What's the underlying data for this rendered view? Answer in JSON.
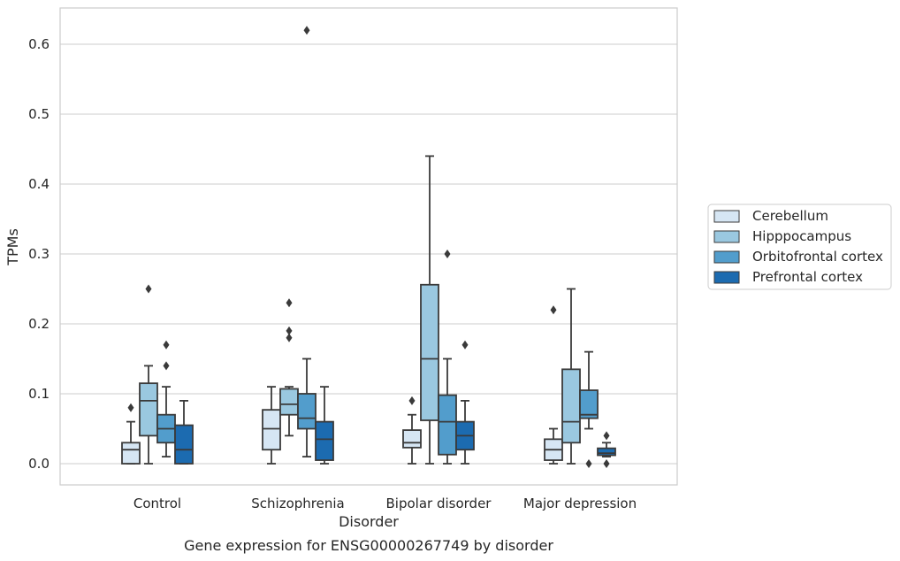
{
  "chart_data": {
    "type": "box",
    "title": "Gene expression for ENSG00000267749 by disorder",
    "xlabel": "Disorder",
    "ylabel": "TPMs",
    "ylim": [
      -0.03,
      0.655
    ],
    "yticks": [
      0.0,
      0.1,
      0.2,
      0.3,
      0.4,
      0.5,
      0.6
    ],
    "ytick_labels": [
      "0.0",
      "0.1",
      "0.2",
      "0.3",
      "0.4",
      "0.5",
      "0.6"
    ],
    "grid": true,
    "legend_position": "right",
    "categories": [
      "Control",
      "Schizophrenia",
      "Bipolar disorder",
      "Major depression"
    ],
    "series": [
      {
        "name": "Cerebellum",
        "color": "#d6e6f4",
        "boxes": [
          {
            "min": 0.0,
            "q1": 0.0,
            "median": 0.02,
            "q3": 0.03,
            "max": 0.06,
            "outliers": [
              0.08
            ]
          },
          {
            "min": 0.0,
            "q1": 0.02,
            "median": 0.05,
            "q3": 0.077,
            "max": 0.11,
            "outliers": []
          },
          {
            "min": 0.0,
            "q1": 0.023,
            "median": 0.03,
            "q3": 0.048,
            "max": 0.07,
            "outliers": [
              0.09
            ]
          },
          {
            "min": 0.0,
            "q1": 0.005,
            "median": 0.02,
            "q3": 0.035,
            "max": 0.05,
            "outliers": [
              0.22
            ]
          }
        ]
      },
      {
        "name": "Hipppocampus",
        "color": "#9ac8e0",
        "boxes": [
          {
            "min": 0.0,
            "q1": 0.04,
            "median": 0.09,
            "q3": 0.115,
            "max": 0.14,
            "outliers": [
              0.25
            ]
          },
          {
            "min": 0.04,
            "q1": 0.07,
            "median": 0.085,
            "q3": 0.107,
            "max": 0.11,
            "outliers": [
              0.18,
              0.19,
              0.23
            ]
          },
          {
            "min": 0.0,
            "q1": 0.062,
            "median": 0.15,
            "q3": 0.256,
            "max": 0.44,
            "outliers": []
          },
          {
            "min": 0.0,
            "q1": 0.03,
            "median": 0.06,
            "q3": 0.135,
            "max": 0.25,
            "outliers": []
          }
        ]
      },
      {
        "name": "Orbitofrontal cortex",
        "color": "#529dcc",
        "boxes": [
          {
            "min": 0.01,
            "q1": 0.03,
            "median": 0.05,
            "q3": 0.07,
            "max": 0.11,
            "outliers": [
              0.14,
              0.17
            ]
          },
          {
            "min": 0.01,
            "q1": 0.05,
            "median": 0.065,
            "q3": 0.1,
            "max": 0.15,
            "outliers": [
              0.62
            ]
          },
          {
            "min": 0.0,
            "q1": 0.013,
            "median": 0.06,
            "q3": 0.098,
            "max": 0.15,
            "outliers": [
              0.3
            ]
          },
          {
            "min": 0.05,
            "q1": 0.065,
            "median": 0.07,
            "q3": 0.105,
            "max": 0.16,
            "outliers": [
              0.0
            ]
          }
        ]
      },
      {
        "name": "Prefrontal cortex",
        "color": "#1c6bb0",
        "boxes": [
          {
            "min": 0.0,
            "q1": 0.0,
            "median": 0.02,
            "q3": 0.055,
            "max": 0.09,
            "outliers": []
          },
          {
            "min": 0.0,
            "q1": 0.005,
            "median": 0.035,
            "q3": 0.06,
            "max": 0.11,
            "outliers": []
          },
          {
            "min": 0.0,
            "q1": 0.02,
            "median": 0.04,
            "q3": 0.06,
            "max": 0.09,
            "outliers": [
              0.17
            ]
          },
          {
            "min": 0.01,
            "q1": 0.012,
            "median": 0.015,
            "q3": 0.022,
            "max": 0.03,
            "outliers": [
              0.0,
              0.04
            ]
          }
        ]
      }
    ]
  }
}
